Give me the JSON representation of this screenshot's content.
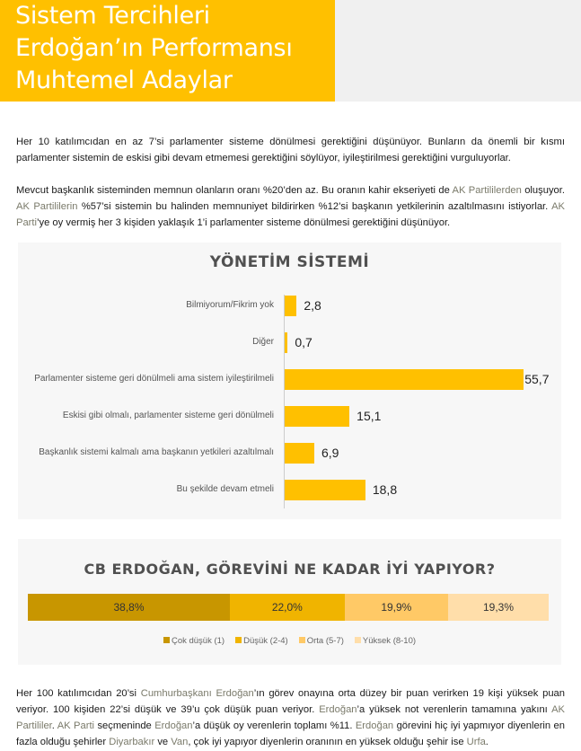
{
  "header": {
    "lines": [
      "Sistem Tercihleri",
      "Erdoğan’ın Performansı",
      "Muhtemel Adaylar"
    ]
  },
  "paragraphs": [
    [
      {
        "t": "Her 10 katılımcıdan en az 7’si parlamenter sisteme dönülmesi gerektiğini düşünüyor. Bunların da önemli bir kısmı parlamenter sistemin de eskisi gibi devam etmemesi gerektiğini söylüyor, iyileştirilmesi gerektiğini vurguluyorlar."
      }
    ],
    [
      {
        "t": "Mevcut başkanlık sisteminden memnun olanların oranı %20’den az.  Bu oranın kahir ekseriyeti de "
      },
      {
        "t": "AK Partililerden",
        "hl": true
      },
      {
        "t": " oluşuyor.  "
      },
      {
        "t": "AK Partililerin",
        "hl": true
      },
      {
        "t": " %57’si sistemin bu halinden memnuniyet bildirirken %12’si başkanın yetkilerinin azaltılmasını istiyorlar.  "
      },
      {
        "t": "AK Parti",
        "hl": true
      },
      {
        "t": "’ye oy vermiş her 3 kişiden yaklaşık 1’i parlamenter sisteme dönülmesi gerektiğini düşünüyor."
      }
    ],
    [
      {
        "t": "Her 100 katılımcıdan 20’si "
      },
      {
        "t": "Cumhurbaşkanı Erdoğan",
        "hl": true
      },
      {
        "t": "’ın görev onayına orta düzey bir puan verirken 19 kişi yüksek puan veriyor. 100 kişiden 22’si düşük ve 39’u çok düşük puan veriyor. "
      },
      {
        "t": "Erdoğan",
        "hl": true
      },
      {
        "t": "’a yüksek not verenlerin tamamına yakını "
      },
      {
        "t": "AK Partililer",
        "hl": true
      },
      {
        "t": ". "
      },
      {
        "t": "AK Parti",
        "hl": true
      },
      {
        "t": " seçmeninde "
      },
      {
        "t": "Erdoğan",
        "hl": true
      },
      {
        "t": "’a düşük oy verenlerin toplamı %11. "
      },
      {
        "t": "Erdoğan",
        "hl": true
      },
      {
        "t": " görevini hiç iyi yapmıyor diyenlerin en fazla olduğu şehirler "
      },
      {
        "t": "Diyarbakır",
        "hl": true
      },
      {
        "t": " ve "
      },
      {
        "t": "Van",
        "hl": true
      },
      {
        "t": ", çok iyi yapıyor diyenlerin oranının en yüksek olduğu şehir ise "
      },
      {
        "t": "Urfa",
        "hl": true
      },
      {
        "t": "."
      }
    ]
  ],
  "chart_data": [
    {
      "type": "bar",
      "orientation": "horizontal",
      "title": "YÖNETİM SİSTEMİ",
      "categories": [
        "Bilmiyorum/Fikrim yok",
        "Diğer",
        "Parlamenter sisteme geri dönülmeli ama sistem iyileştirilmeli",
        "Eskisi gibi olmalı, parlamenter sisteme geri dönülmeli",
        "Başkanlık sistemi kalmalı ama başkanın yetkileri azaltılmalı",
        "Bu şekilde devam etmeli"
      ],
      "values": [
        2.8,
        0.7,
        55.7,
        15.1,
        6.9,
        18.8
      ],
      "labels": [
        "2,8",
        "0,7",
        "55,7",
        "15,1",
        "6,9",
        "18,8"
      ],
      "color": "#ffc000"
    },
    {
      "type": "bar",
      "stacked": true,
      "title": "CB ERDOĞAN, GÖREVİNİ NE KADAR İYİ YAPIYOR?",
      "series": [
        {
          "name": "Çok düşük (1)",
          "value": 38.8,
          "label": "38,8%",
          "color": "#c89600"
        },
        {
          "name": "Düşük (2-4)",
          "value": 22.0,
          "label": "22,0%",
          "color": "#f0b400"
        },
        {
          "name": "Orta (5-7)",
          "value": 19.9,
          "label": "19,9%",
          "color": "#ffc966"
        },
        {
          "name": "Yüksek (8-10)",
          "value": 19.3,
          "label": "19,3%",
          "color": "#ffdeaa"
        }
      ],
      "legend": "bottom"
    }
  ]
}
